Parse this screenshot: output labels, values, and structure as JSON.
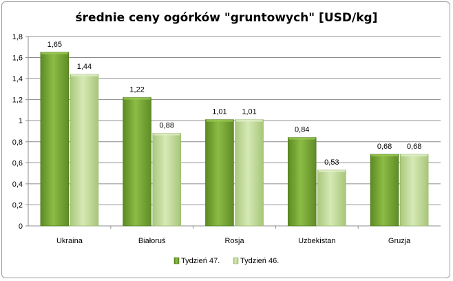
{
  "chart_data": {
    "type": "bar",
    "title": "średnie ceny ogórków \"gruntowych\" [USD/kg]",
    "categories": [
      "Ukraina",
      "Białoruś",
      "Rosja",
      "Uzbekistan",
      "Gruzja"
    ],
    "series": [
      {
        "name": "Tydzień 47.",
        "values": [
          1.65,
          1.22,
          1.01,
          0.84,
          0.68
        ],
        "color": "#76a032"
      },
      {
        "name": "Tydzień 46.",
        "values": [
          1.44,
          0.88,
          1.01,
          0.53,
          0.68
        ],
        "color": "#c3dc9a"
      }
    ],
    "data_labels": [
      [
        "1,65",
        "1,22",
        "1,01",
        "0,84",
        "0,68"
      ],
      [
        "1,44",
        "0,88",
        "1,01",
        "0,53",
        "0,68"
      ]
    ],
    "ylim": [
      0,
      1.8
    ],
    "y_ticks": [
      0,
      0.2,
      0.4,
      0.6,
      0.8,
      1,
      1.2,
      1.4,
      1.6,
      1.8
    ],
    "y_tick_labels": [
      "0",
      "0,2",
      "0,4",
      "0,6",
      "0,8",
      "1",
      "1,2",
      "1,4",
      "1,6",
      "1,8"
    ],
    "grid": true,
    "legend_position": "bottom"
  }
}
